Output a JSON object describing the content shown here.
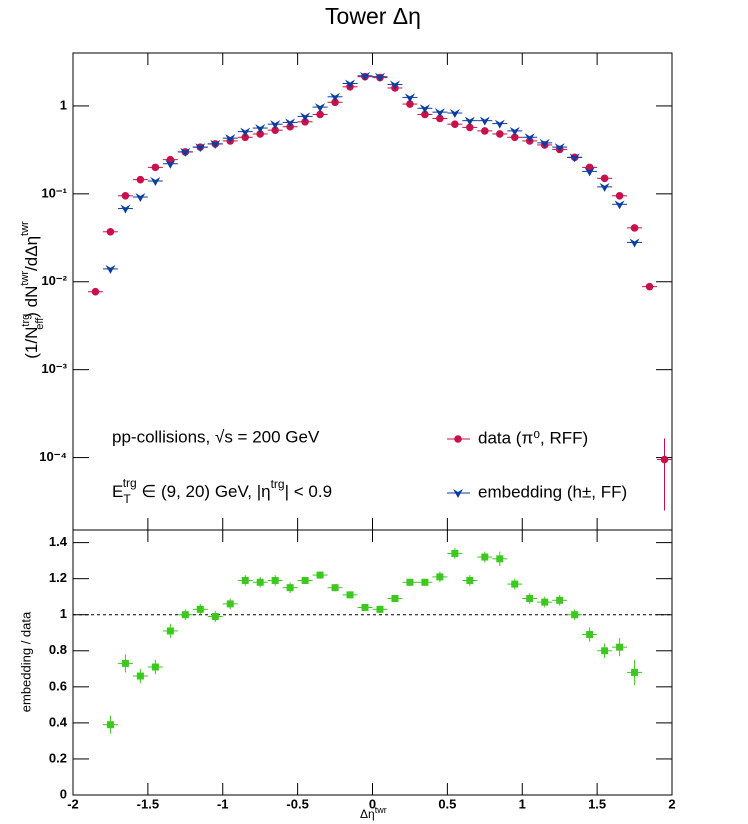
{
  "chart_data": [
    {
      "type": "scatter",
      "title": "Tower Δη",
      "y_label": [
        "(1/N",
        "trg",
        "eff",
        ") dN",
        "twr",
        "/dΔη",
        "twr"
      ],
      "log_y": true,
      "xlim": [
        -2,
        2
      ],
      "ylim": [
        1.5e-05,
        4
      ],
      "yticks": [
        {
          "value": 0.0001,
          "label": "10⁻⁴"
        },
        {
          "value": 0.001,
          "label": "10⁻³"
        },
        {
          "value": 0.01,
          "label": "10⁻²"
        },
        {
          "value": 0.1,
          "label": "10⁻¹"
        },
        1
      ],
      "xerr": 0.05,
      "annotations": [
        "pp-collisions, √s = 200 GeV",
        [
          "E",
          "T",
          "trg",
          " ∈ (9, 20) GeV, |η",
          "trg",
          "| < 0.9"
        ]
      ],
      "legend": "lower right",
      "series": [
        {
          "name": "data (π⁰, RFF)",
          "color": "#c8104a",
          "marker": "circle",
          "x": [
            -1.85,
            -1.75,
            -1.65,
            -1.55,
            -1.45,
            -1.35,
            -1.25,
            -1.15,
            -1.05,
            -0.95,
            -0.85,
            -0.75,
            -0.65,
            -0.55,
            -0.45,
            -0.35,
            -0.25,
            -0.15,
            -0.05,
            0.05,
            0.15,
            0.25,
            0.35,
            0.45,
            0.55,
            0.65,
            0.75,
            0.85,
            0.95,
            1.05,
            1.15,
            1.25,
            1.35,
            1.45,
            1.55,
            1.65,
            1.75,
            1.85,
            1.95
          ],
          "values": [
            0.0077,
            0.037,
            0.095,
            0.145,
            0.2,
            0.245,
            0.3,
            0.34,
            0.37,
            0.4,
            0.44,
            0.48,
            0.53,
            0.58,
            0.66,
            0.8,
            1.1,
            1.65,
            2.15,
            2.1,
            1.6,
            1.05,
            0.8,
            0.72,
            0.62,
            0.57,
            0.52,
            0.48,
            0.44,
            0.4,
            0.36,
            0.32,
            0.26,
            0.2,
            0.15,
            0.095,
            0.041,
            0.0088,
            9.5e-05
          ],
          "yerr": [
            null,
            null,
            null,
            null,
            null,
            null,
            null,
            null,
            null,
            null,
            null,
            null,
            null,
            null,
            null,
            null,
            null,
            null,
            null,
            null,
            null,
            null,
            null,
            null,
            null,
            null,
            null,
            null,
            null,
            null,
            null,
            null,
            null,
            null,
            null,
            null,
            null,
            null,
            7e-05
          ]
        },
        {
          "name": "embedding (h±, FF)",
          "color": "#0a3ea0",
          "marker": "triangle-down",
          "x": [
            -1.75,
            -1.65,
            -1.55,
            -1.45,
            -1.35,
            -1.25,
            -1.15,
            -1.05,
            -0.95,
            -0.85,
            -0.75,
            -0.65,
            -0.55,
            -0.45,
            -0.35,
            -0.25,
            -0.15,
            -0.05,
            0.05,
            0.15,
            0.25,
            0.35,
            0.45,
            0.55,
            0.65,
            0.75,
            0.85,
            0.95,
            1.05,
            1.15,
            1.25,
            1.35,
            1.45,
            1.55,
            1.65,
            1.75
          ],
          "values": [
            0.014,
            0.068,
            0.092,
            0.14,
            0.22,
            0.3,
            0.34,
            0.37,
            0.43,
            0.51,
            0.56,
            0.62,
            0.65,
            0.76,
            0.97,
            1.27,
            1.8,
            2.2,
            2.15,
            1.75,
            1.25,
            0.94,
            0.85,
            0.83,
            0.68,
            0.68,
            0.63,
            0.52,
            0.44,
            0.38,
            0.34,
            0.26,
            0.18,
            0.12,
            0.076,
            0.028
          ]
        }
      ]
    },
    {
      "type": "scatter",
      "x_label": [
        "Δη",
        "twr"
      ],
      "y_label": "embedding / data",
      "xlim": [
        -2,
        2
      ],
      "xticks": [
        -2,
        -1.5,
        -1,
        -0.5,
        0,
        0.5,
        1,
        1.5,
        2
      ],
      "ylim": [
        0,
        1.47
      ],
      "yticks": [
        0,
        0.2,
        0.4,
        0.6,
        0.8,
        1,
        1.2,
        1.4
      ],
      "hline": 1,
      "xerr": 0.05,
      "series": [
        {
          "color": "#3cc81e",
          "marker": "square",
          "x": [
            -1.75,
            -1.65,
            -1.55,
            -1.45,
            -1.35,
            -1.25,
            -1.15,
            -1.05,
            -0.95,
            -0.85,
            -0.75,
            -0.65,
            -0.55,
            -0.45,
            -0.35,
            -0.25,
            -0.15,
            -0.05,
            0.05,
            0.15,
            0.25,
            0.35,
            0.45,
            0.55,
            0.65,
            0.75,
            0.85,
            0.95,
            1.05,
            1.15,
            1.25,
            1.35,
            1.45,
            1.55,
            1.65,
            1.75
          ],
          "values": [
            0.39,
            0.73,
            0.66,
            0.71,
            0.91,
            1.0,
            1.03,
            0.99,
            1.06,
            1.19,
            1.18,
            1.19,
            1.15,
            1.19,
            1.22,
            1.15,
            1.11,
            1.04,
            1.03,
            1.09,
            1.18,
            1.18,
            1.21,
            1.34,
            1.19,
            1.32,
            1.31,
            1.17,
            1.09,
            1.07,
            1.08,
            1.0,
            0.89,
            0.8,
            0.82,
            0.68
          ],
          "yerr": [
            0.05,
            0.05,
            0.04,
            0.04,
            0.04,
            0.03,
            0.03,
            0.03,
            0.03,
            0.03,
            0.03,
            0.03,
            0.03,
            0.02,
            0.02,
            0.02,
            0.02,
            0.02,
            0.02,
            0.02,
            0.02,
            0.02,
            0.03,
            0.03,
            0.03,
            0.03,
            0.04,
            0.03,
            0.03,
            0.03,
            0.03,
            0.03,
            0.04,
            0.04,
            0.05,
            0.07
          ]
        }
      ]
    }
  ]
}
